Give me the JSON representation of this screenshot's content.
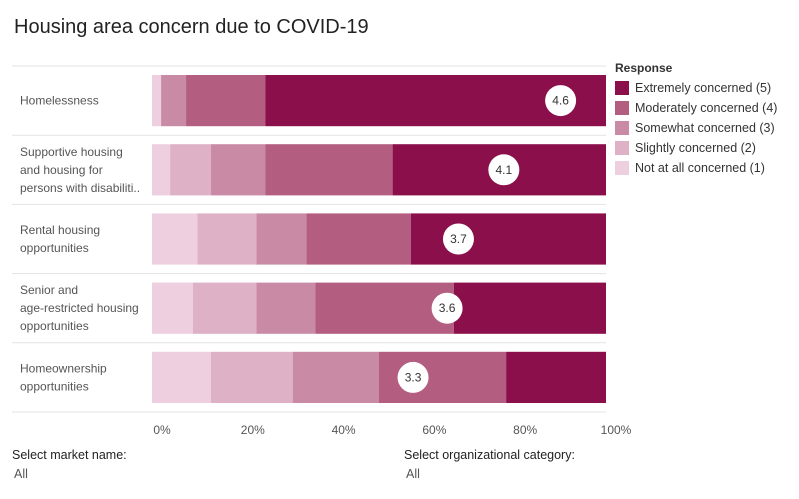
{
  "title": "Housing area concern due to COVID-19",
  "legend": {
    "title": "Response",
    "items": [
      {
        "label": "Extremely concerned (5)",
        "color": "#8a0f4b"
      },
      {
        "label": "Moderately concerned (4)",
        "color": "#b35e80"
      },
      {
        "label": "Somewhat concerned (3)",
        "color": "#c98aa6"
      },
      {
        "label": "Slightly concerned (2)",
        "color": "#deb1c6"
      },
      {
        "label": "Not at all concerned (1)",
        "color": "#edcfe0"
      }
    ]
  },
  "filters": {
    "market": {
      "label": "Select market name:",
      "value": "All"
    },
    "org": {
      "label": "Select organizational category:",
      "value": "All"
    }
  },
  "chart_data": {
    "type": "bar",
    "orientation": "horizontal",
    "stacked": true,
    "title": "Housing area concern due to COVID-19",
    "categories": [
      [
        "Homelessness"
      ],
      [
        "Supportive housing",
        "and housing for",
        "persons with disabiliti.."
      ],
      [
        "Rental housing",
        "opportunities"
      ],
      [
        "Senior and",
        "age-restricted housing",
        "opportunities"
      ],
      [
        "Homeownership",
        "opportunities"
      ]
    ],
    "series": [
      {
        "name": "Not at all concerned (1)",
        "color": "#edcfe0",
        "values": [
          2,
          4,
          10,
          9,
          13
        ]
      },
      {
        "name": "Slightly concerned (2)",
        "color": "#deb1c6",
        "values": [
          0,
          9,
          13,
          14,
          18
        ]
      },
      {
        "name": "Somewhat concerned (3)",
        "color": "#c98aa6",
        "values": [
          5.5,
          12,
          11,
          13,
          19
        ]
      },
      {
        "name": "Moderately concerned (4)",
        "color": "#b35e80",
        "values": [
          17.5,
          28,
          23,
          30.5,
          28
        ]
      },
      {
        "name": "Extremely concerned (5)",
        "color": "#8a0f4b",
        "values": [
          75,
          47,
          43,
          33.5,
          22
        ]
      }
    ],
    "averages": [
      "4.6",
      "4.1",
      "3.7",
      "3.6",
      "3.3"
    ],
    "x_ticks": [
      "0%",
      "20%",
      "40%",
      "60%",
      "80%",
      "100%"
    ],
    "xlim": [
      0,
      100
    ],
    "xlabel": "",
    "ylabel": ""
  }
}
